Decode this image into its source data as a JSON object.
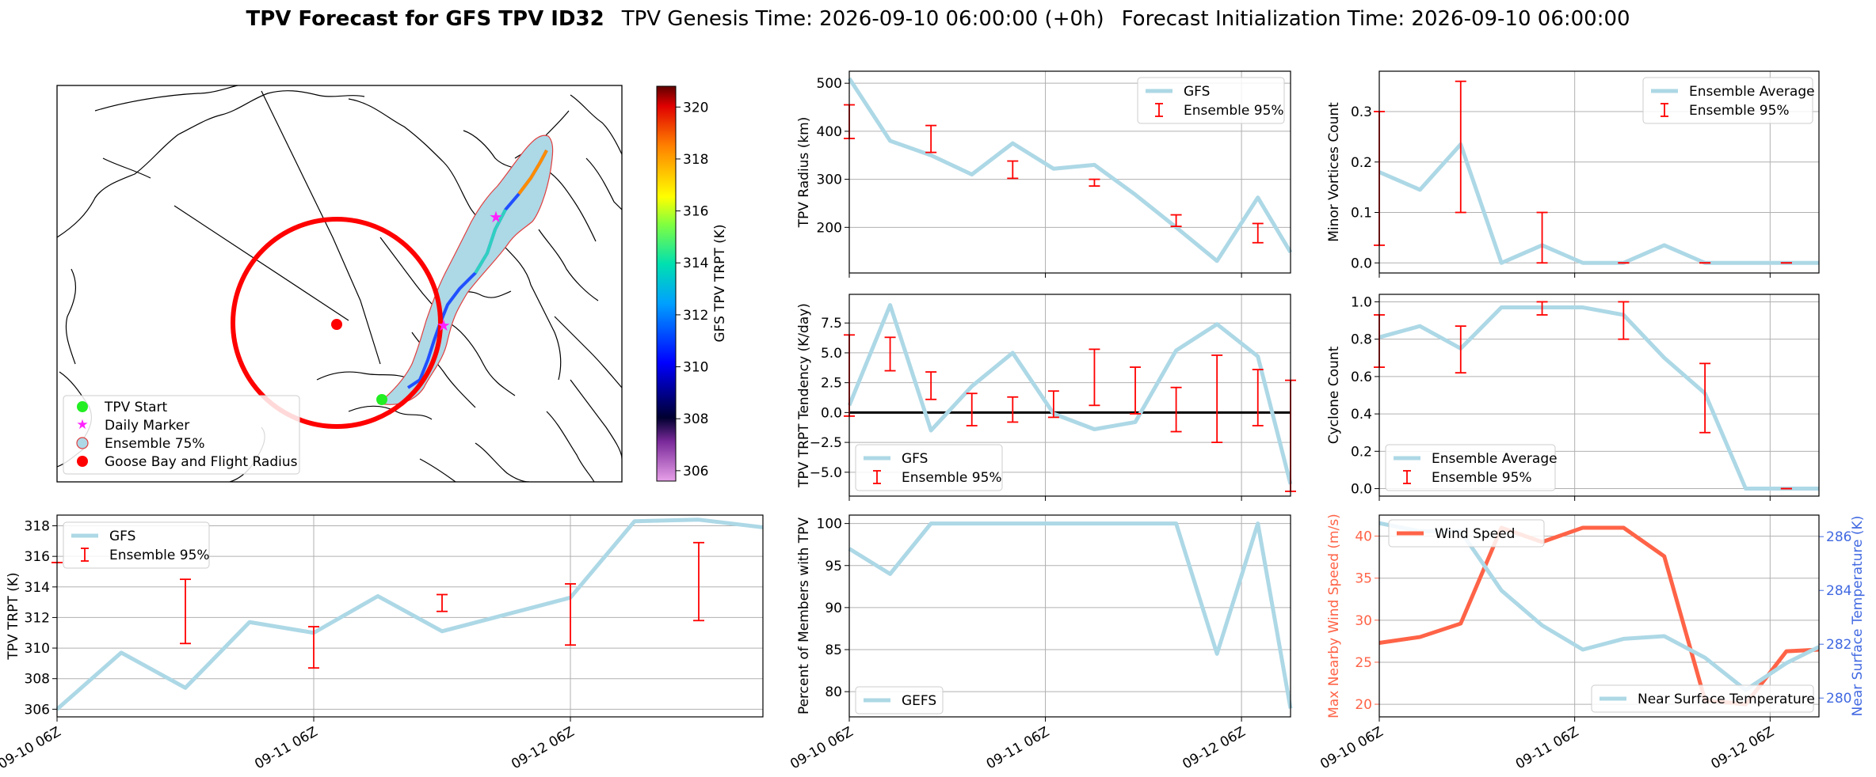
{
  "header": {
    "title_bold": "TPV Forecast for GFS TPV ID32",
    "genesis": "TPV Genesis Time: 2026-09-10 06:00:00 (+0h)",
    "init": "Forecast Initialization Time: 2026-09-10 06:00:00"
  },
  "map": {
    "colorbar_label": "GFS TPV TRPT (K)",
    "colorbar_ticks": [
      306,
      308,
      310,
      312,
      314,
      316,
      318,
      320
    ],
    "colorbar_range": [
      305.6,
      320.8
    ],
    "legend": [
      "TPV Start",
      "Daily Marker",
      "Ensemble 75%",
      "Goose Bay and Flight Radius"
    ],
    "colors": {
      "start": "#22ee22",
      "marker": "#ff22ff",
      "envelope": "#add8e6",
      "goose": "#ff0000"
    }
  },
  "common": {
    "time_ticks": [
      "09-10 06Z",
      "09-11 06Z",
      "09-12 06Z"
    ],
    "time_tick_hours": [
      0,
      24,
      48
    ],
    "colors": {
      "line": "#add8e6",
      "error": "#ff0000",
      "wind": "#ff6347",
      "temp_axis": "#4169e1"
    }
  },
  "chart_data": [
    {
      "id": "trpt",
      "type": "line",
      "ylabel": "TPV TRPT (K)",
      "xlim": [
        0,
        66
      ],
      "ylim": [
        305.5,
        318.7
      ],
      "yticks": [
        306,
        308,
        310,
        312,
        314,
        316,
        318
      ],
      "x": [
        0,
        6,
        12,
        18,
        24,
        30,
        36,
        42,
        48,
        54,
        60,
        66
      ],
      "series": [
        {
          "name": "GFS",
          "values": [
            306.0,
            309.7,
            307.4,
            311.7,
            311.0,
            313.4,
            311.1,
            312.2,
            313.3,
            318.3,
            318.4,
            317.9
          ]
        }
      ],
      "errors": {
        "name": "Ensemble 95%",
        "x": [
          0,
          12,
          24,
          36,
          48,
          60
        ],
        "low": [
          315.6,
          310.3,
          308.7,
          312.4,
          310.2,
          311.8
        ],
        "high": [
          315.6,
          314.5,
          311.4,
          313.5,
          314.2,
          316.9
        ]
      },
      "legend": [
        "GFS",
        "Ensemble 95%"
      ]
    },
    {
      "id": "radius",
      "type": "line",
      "ylabel": "TPV Radius (km)",
      "xlim": [
        0,
        54
      ],
      "ylim": [
        105,
        525
      ],
      "yticks": [
        200,
        300,
        400,
        500
      ],
      "x": [
        0,
        5,
        10,
        15,
        20,
        25,
        30,
        35,
        40,
        45,
        50,
        54
      ],
      "series": [
        {
          "name": "GFS",
          "values": [
            510,
            380,
            350,
            310,
            375,
            322,
            330,
            268,
            200,
            130,
            262,
            148
          ]
        }
      ],
      "errors": {
        "name": "Ensemble 95%",
        "x": [
          0,
          10,
          20,
          30,
          40,
          50
        ],
        "low": [
          385,
          356,
          302,
          286,
          202,
          168
        ],
        "high": [
          455,
          412,
          338,
          300,
          226,
          208
        ]
      },
      "legend": [
        "GFS",
        "Ensemble 95%"
      ]
    },
    {
      "id": "tendency",
      "type": "line",
      "ylabel": "TPV TRPT Tendency (K/day)",
      "xlim": [
        0,
        54
      ],
      "ylim": [
        -7,
        9.9
      ],
      "yticks": [
        -5.0,
        -2.5,
        0.0,
        2.5,
        5.0,
        7.5
      ],
      "zero_line": true,
      "x": [
        0,
        5,
        10,
        15,
        20,
        25,
        30,
        35,
        40,
        45,
        50,
        54
      ],
      "series": [
        {
          "name": "GFS",
          "values": [
            0.6,
            9.0,
            -1.5,
            2.2,
            5.0,
            -0.1,
            -1.4,
            -0.8,
            5.2,
            7.4,
            4.7,
            -6.0
          ]
        }
      ],
      "errors": {
        "name": "Ensemble 95%",
        "x": [
          0,
          5,
          10,
          15,
          20,
          25,
          30,
          35,
          40,
          45,
          50,
          54
        ],
        "low": [
          -0.3,
          3.5,
          1.1,
          -1.1,
          -0.8,
          -0.4,
          0.6,
          -0.1,
          -1.6,
          -2.5,
          -1.1,
          -6.6
        ],
        "high": [
          6.5,
          6.3,
          3.4,
          1.6,
          1.3,
          1.8,
          5.3,
          3.8,
          2.1,
          4.8,
          3.6,
          2.7
        ]
      },
      "legend": [
        "GFS",
        "Ensemble 95%"
      ]
    },
    {
      "id": "percent",
      "type": "line",
      "ylabel": "Percent of Members with TPV",
      "xlim": [
        0,
        54
      ],
      "ylim": [
        77,
        101
      ],
      "yticks": [
        80,
        85,
        90,
        95,
        100
      ],
      "x": [
        0,
        5,
        10,
        15,
        20,
        25,
        30,
        35,
        40,
        45,
        50,
        54
      ],
      "series": [
        {
          "name": "GEFS",
          "values": [
            97,
            94,
            100,
            100,
            100,
            100,
            100,
            100,
            100,
            84.5,
            100,
            78
          ]
        }
      ],
      "legend": [
        "GEFS"
      ]
    },
    {
      "id": "minor",
      "type": "line",
      "ylabel": "Minor Vortices Count",
      "xlim": [
        0,
        54
      ],
      "ylim": [
        -0.02,
        0.38
      ],
      "yticks": [
        0.0,
        0.1,
        0.2,
        0.3
      ],
      "x": [
        0,
        5,
        10,
        15,
        20,
        25,
        30,
        35,
        40,
        45,
        50,
        54
      ],
      "series": [
        {
          "name": "Ensemble Average",
          "values": [
            0.18,
            0.145,
            0.235,
            0.0,
            0.035,
            0.0,
            0.0,
            0.035,
            0.0,
            0.0,
            0.0,
            0.0
          ]
        }
      ],
      "errors": {
        "name": "Ensemble 95%",
        "x": [
          0,
          10,
          20,
          30,
          40,
          50
        ],
        "low": [
          0.035,
          0.1,
          0.0,
          0.0,
          0.0,
          0.0
        ],
        "high": [
          0.3,
          0.36,
          0.1,
          0.0,
          0.0,
          0.0
        ]
      },
      "legend": [
        "Ensemble Average",
        "Ensemble 95%"
      ]
    },
    {
      "id": "cyclone",
      "type": "line",
      "ylabel": "Cyclone Count",
      "xlim": [
        0,
        54
      ],
      "ylim": [
        -0.04,
        1.04
      ],
      "yticks": [
        0.0,
        0.2,
        0.4,
        0.6,
        0.8,
        1.0
      ],
      "x": [
        0,
        5,
        10,
        15,
        20,
        25,
        30,
        35,
        40,
        45,
        50,
        54
      ],
      "series": [
        {
          "name": "Ensemble Average",
          "values": [
            0.81,
            0.87,
            0.75,
            0.97,
            0.97,
            0.97,
            0.93,
            0.7,
            0.51,
            0.0,
            0.0,
            0.0
          ]
        }
      ],
      "errors": {
        "name": "Ensemble 95%",
        "x": [
          0,
          10,
          20,
          30,
          40,
          50
        ],
        "low": [
          0.65,
          0.62,
          0.93,
          0.8,
          0.3,
          0.0
        ],
        "high": [
          0.93,
          0.87,
          1.0,
          1.0,
          0.67,
          0.0
        ]
      },
      "legend": [
        "Ensemble Average",
        "Ensemble 95%"
      ]
    },
    {
      "id": "wind",
      "type": "line",
      "ylabel": "Max Nearby Wind Speed (m/s)",
      "y2label": "Near Surface Temperature (K)",
      "xlim": [
        0,
        54
      ],
      "ylim": [
        18.5,
        42.5
      ],
      "y2lim": [
        279.3,
        286.8
      ],
      "yticks": [
        20,
        25,
        30,
        35,
        40
      ],
      "y2ticks": [
        280,
        282,
        284,
        286
      ],
      "x": [
        0,
        5,
        10,
        15,
        20,
        25,
        30,
        35,
        40,
        45,
        50,
        54
      ],
      "series": [
        {
          "name": "Wind Speed",
          "axis": "left",
          "values": [
            27.3,
            28.0,
            29.6,
            41.0,
            39.3,
            41.0,
            41.0,
            37.6,
            20.5,
            20.0,
            26.3,
            26.5
          ]
        },
        {
          "name": "Near Surface Temperature",
          "axis": "right",
          "values": [
            286.5,
            286.2,
            286.2,
            284.0,
            282.7,
            281.8,
            282.2,
            282.3,
            281.5,
            280.3,
            281.3,
            281.9
          ]
        }
      ],
      "legend": [
        "Wind Speed",
        "Near Surface Temperature"
      ]
    }
  ]
}
